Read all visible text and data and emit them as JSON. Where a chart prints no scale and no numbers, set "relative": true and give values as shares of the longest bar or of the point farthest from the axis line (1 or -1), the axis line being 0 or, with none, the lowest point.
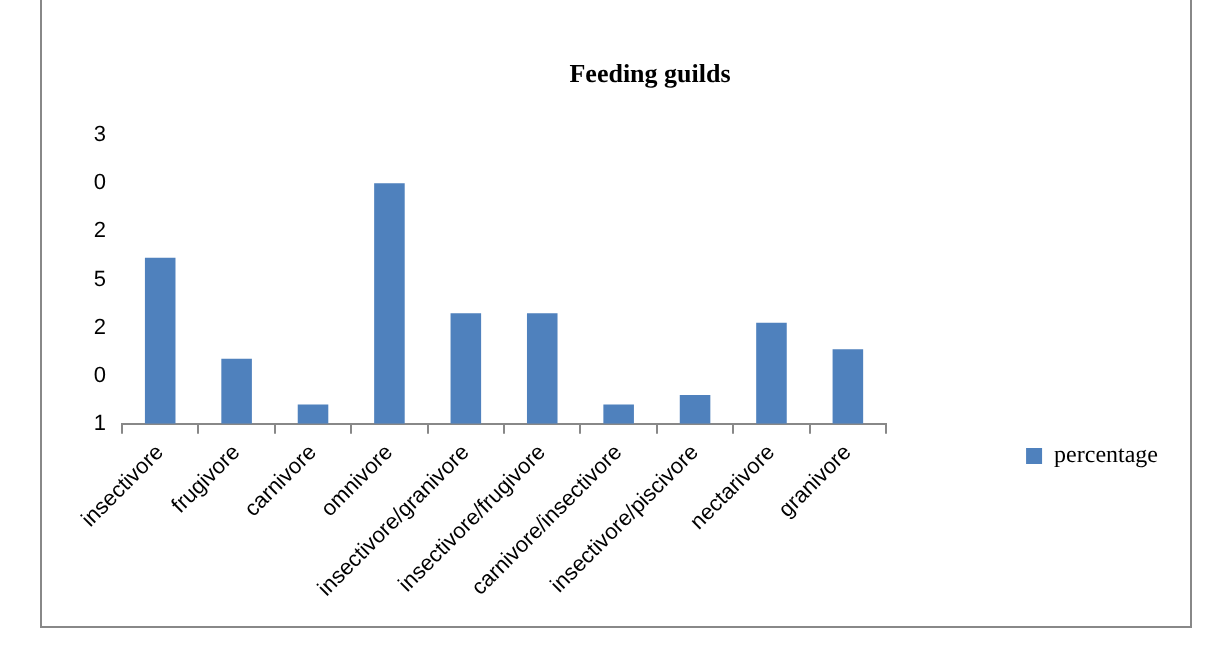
{
  "chart_data": {
    "type": "bar",
    "title": "Feeding guilds",
    "categories": [
      "insectivore",
      "frugivore",
      "carnivore",
      "omnivore",
      "insectivore/granivore",
      "insectivore/frugivore",
      "carnivore/insectivore",
      "insectivore/piscivore",
      "nectarivore",
      "granivore"
    ],
    "series": [
      {
        "name": "percentage",
        "color": "#4f81bd",
        "values": [
          0.69,
          0.27,
          0.08,
          1,
          0.46,
          0.46,
          0.08,
          0.12,
          0.42,
          0.31
        ]
      }
    ],
    "relative": true,
    "annotations": [
      "3",
      "0",
      "2",
      "5",
      "2",
      "0",
      "1"
    ],
    "legend": "right"
  }
}
